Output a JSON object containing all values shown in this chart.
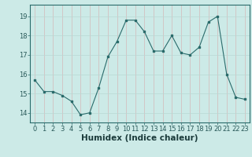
{
  "x": [
    0,
    1,
    2,
    3,
    4,
    5,
    6,
    7,
    8,
    9,
    10,
    11,
    12,
    13,
    14,
    15,
    16,
    17,
    18,
    19,
    20,
    21,
    22,
    23
  ],
  "y": [
    15.7,
    15.1,
    15.1,
    14.9,
    14.6,
    13.9,
    14.0,
    15.3,
    16.9,
    17.7,
    18.8,
    18.8,
    18.2,
    17.2,
    17.2,
    18.0,
    17.1,
    17.0,
    17.4,
    18.7,
    19.0,
    16.0,
    14.8,
    14.7
  ],
  "line_color": "#2a6b6b",
  "marker_color": "#2a6b6b",
  "bg_color": "#cceae7",
  "grid_color_v": "#d4b8b8",
  "grid_color_h": "#b8d8d4",
  "xlabel": "Humidex (Indice chaleur)",
  "xlabel_fontsize": 7.5,
  "tick_fontsize": 6,
  "ylim_min": 13.5,
  "ylim_max": 19.6,
  "xlim_min": -0.5,
  "xlim_max": 23.5,
  "yticks": [
    14,
    15,
    16,
    17,
    18,
    19
  ],
  "xticks": [
    0,
    1,
    2,
    3,
    4,
    5,
    6,
    7,
    8,
    9,
    10,
    11,
    12,
    13,
    14,
    15,
    16,
    17,
    18,
    19,
    20,
    21,
    22,
    23
  ]
}
